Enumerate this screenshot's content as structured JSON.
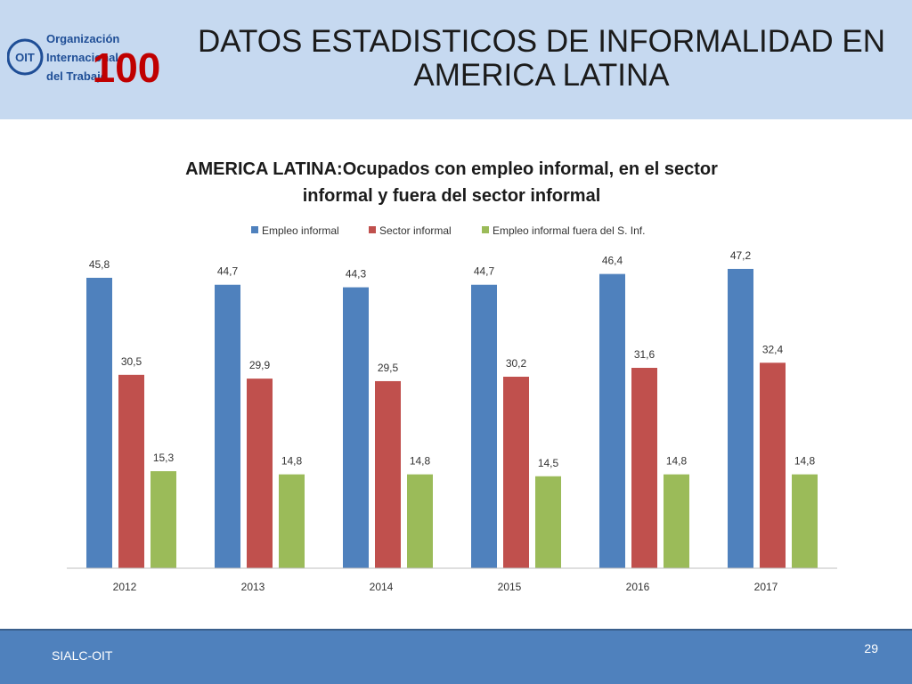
{
  "slide": {
    "title_line1": "DATOS ESTADISTICOS DE INFORMALIDAD EN",
    "title_line2": "AMERICA LATINA",
    "logo_text": [
      "Organización",
      "Internacional",
      "del Trabajo"
    ],
    "logo_mark": "OIT",
    "logo_anniversary": "100",
    "footer_left": "SIALC-OIT",
    "page_number": "29",
    "colors": {
      "header_bg": "#c6d9f0",
      "footer_bg": "#4f81bd",
      "logo": "#1f4e96",
      "logo_accent": "#c00000"
    }
  },
  "chart_data": {
    "type": "bar",
    "title_line1": "AMERICA LATINA:Ocupados con empleo informal, en el sector",
    "title_line2": "informal y fuera del sector informal",
    "categories": [
      "2012",
      "2013",
      "2014",
      "2015",
      "2016",
      "2017"
    ],
    "series": [
      {
        "name": "Empleo informal",
        "color": "#4f81bd",
        "values": [
          45.8,
          44.7,
          44.3,
          44.7,
          46.4,
          47.2
        ],
        "labels": [
          "45,8",
          "44,7",
          "44,3",
          "44,7",
          "46,4",
          "47,2"
        ]
      },
      {
        "name": "Sector informal",
        "color": "#c0504d",
        "values": [
          30.5,
          29.9,
          29.5,
          30.2,
          31.6,
          32.4
        ],
        "labels": [
          "30,5",
          "29,9",
          "29,5",
          "30,2",
          "31,6",
          "32,4"
        ]
      },
      {
        "name": "Empleo informal fuera del S. Inf.",
        "color": "#9bbb59",
        "values": [
          15.3,
          14.8,
          14.8,
          14.5,
          14.8,
          14.8
        ],
        "labels": [
          "15,3",
          "14,8",
          "14,8",
          "14,5",
          "14,8",
          "14,8"
        ]
      }
    ],
    "ylim": [
      0,
      50
    ],
    "grid": false,
    "legend": "top"
  }
}
